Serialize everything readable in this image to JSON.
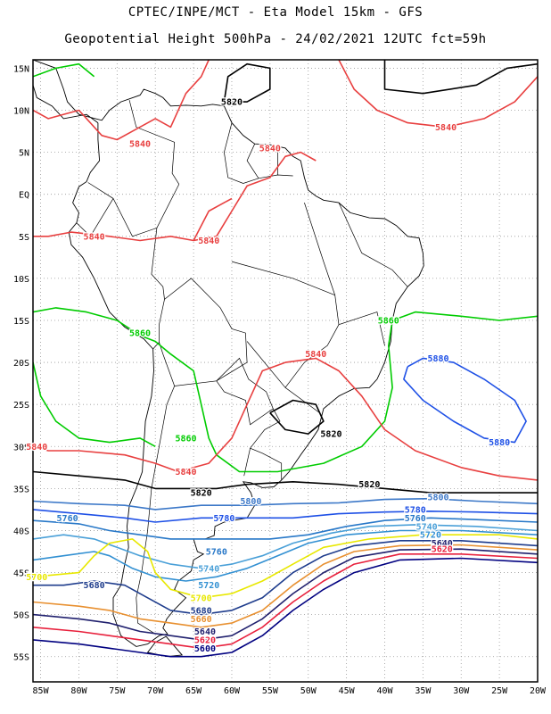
{
  "title_line1": "CPTEC/INPE/MCT -  Eta Model 15km - GFS",
  "title_line2": "Geopotential Height 500hPa - 24/02/2021 12UTC fct=59h",
  "map": {
    "lon_range": [
      -86,
      -20
    ],
    "lat_range": [
      -58,
      16
    ],
    "lon_ticks": [
      "85W",
      "80W",
      "75W",
      "70W",
      "65W",
      "60W",
      "55W",
      "50W",
      "45W",
      "40W",
      "35W",
      "30W",
      "25W",
      "20W"
    ],
    "lat_ticks": [
      "15N",
      "10N",
      "5N",
      "EQ",
      "5S",
      "10S",
      "15S",
      "20S",
      "25S",
      "30S",
      "35S",
      "40S",
      "45S",
      "50S",
      "55S"
    ],
    "grid": "dotted"
  },
  "colors": {
    "5600": "#000080",
    "5620": "#e8203c",
    "5640": "#20206e",
    "5660": "#e89030",
    "5680": "#1e3c8c",
    "5700": "#e8e800",
    "5720": "#3290d2",
    "5740": "#4aa0d8",
    "5760": "#2878c8",
    "5780": "#1e50e6",
    "5800": "#3c78c8",
    "5820": "#000000",
    "5840": "#e84040",
    "5860": "#00cc00",
    "5880": "#1e50e6"
  },
  "contour_labels": [
    {
      "text": "5820",
      "lon": -60,
      "lat": 11,
      "color": "5820"
    },
    {
      "text": "5840",
      "lon": -72,
      "lat": 6,
      "color": "5840"
    },
    {
      "text": "5840",
      "lon": -55,
      "lat": 5.5,
      "color": "5840"
    },
    {
      "text": "5840",
      "lon": -32,
      "lat": 8,
      "color": "5840"
    },
    {
      "text": "5840",
      "lon": -78,
      "lat": -5,
      "color": "5840"
    },
    {
      "text": "5840",
      "lon": -63,
      "lat": -5.5,
      "color": "5840"
    },
    {
      "text": "5860",
      "lon": -72,
      "lat": -16.5,
      "color": "5860"
    },
    {
      "text": "5860",
      "lon": -39.5,
      "lat": -15,
      "color": "5860"
    },
    {
      "text": "5880",
      "lon": -33,
      "lat": -19.5,
      "color": "5880"
    },
    {
      "text": "5880",
      "lon": -25,
      "lat": -29.5,
      "color": "5880"
    },
    {
      "text": "5840",
      "lon": -49,
      "lat": -19,
      "color": "5840"
    },
    {
      "text": "5820",
      "lon": -47,
      "lat": -28.5,
      "color": "5820"
    },
    {
      "text": "5860",
      "lon": -66,
      "lat": -29,
      "color": "5860"
    },
    {
      "text": "5840",
      "lon": -66,
      "lat": -33,
      "color": "5840"
    },
    {
      "text": "5820",
      "lon": -42,
      "lat": -34.5,
      "color": "5820"
    },
    {
      "text": "5820",
      "lon": -64,
      "lat": -35.5,
      "color": "5820"
    },
    {
      "text": "5800",
      "lon": -57.5,
      "lat": -36.5,
      "color": "5800"
    },
    {
      "text": "5800",
      "lon": -33,
      "lat": -36,
      "color": "5800"
    },
    {
      "text": "5780",
      "lon": -36,
      "lat": -37.5,
      "color": "5780"
    },
    {
      "text": "5780",
      "lon": -61,
      "lat": -38.5,
      "color": "5780"
    },
    {
      "text": "5760",
      "lon": -81.5,
      "lat": -38.5,
      "color": "5760"
    },
    {
      "text": "5760",
      "lon": -36,
      "lat": -38.5,
      "color": "5760"
    },
    {
      "text": "5740",
      "lon": -34.5,
      "lat": -39.5,
      "color": "5740"
    },
    {
      "text": "5720",
      "lon": -34,
      "lat": -40.5,
      "color": "5720"
    },
    {
      "text": "5760",
      "lon": -62,
      "lat": -42.5,
      "color": "5760"
    },
    {
      "text": "5740",
      "lon": -63,
      "lat": -44.5,
      "color": "5740"
    },
    {
      "text": "5720",
      "lon": -63,
      "lat": -46.5,
      "color": "5720"
    },
    {
      "text": "5700",
      "lon": -64,
      "lat": -48,
      "color": "5700"
    },
    {
      "text": "5680",
      "lon": -78,
      "lat": -46.5,
      "color": "5680"
    },
    {
      "text": "5680",
      "lon": -64,
      "lat": -49.5,
      "color": "5680"
    },
    {
      "text": "5660",
      "lon": -64,
      "lat": -50.5,
      "color": "5660"
    },
    {
      "text": "5640",
      "lon": -32.5,
      "lat": -41.5,
      "color": "5640"
    },
    {
      "text": "5640",
      "lon": -63.5,
      "lat": -52,
      "color": "5640"
    },
    {
      "text": "5620",
      "lon": -63.5,
      "lat": -53,
      "color": "5620"
    },
    {
      "text": "5600",
      "lon": -63.5,
      "lat": -54,
      "color": "5600"
    },
    {
      "text": "5620",
      "lon": -32.5,
      "lat": -42.2,
      "color": "5620"
    },
    {
      "text": "5700",
      "lon": -85.5,
      "lat": -45.5,
      "color": "5700"
    },
    {
      "text": "5840",
      "lon": -85.5,
      "lat": -30,
      "color": "5840"
    }
  ]
}
